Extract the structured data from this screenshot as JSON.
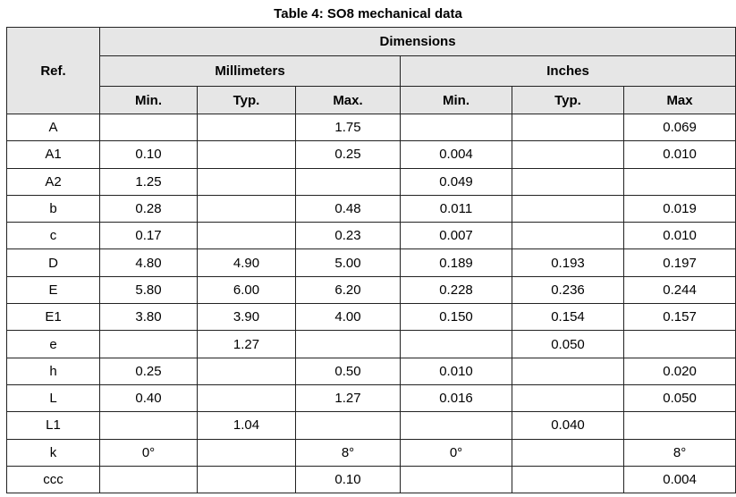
{
  "title": "Table 4: SO8 mechanical data",
  "header": {
    "ref": "Ref.",
    "dimensions": "Dimensions",
    "groups": [
      "Millimeters",
      "Inches"
    ],
    "columns": [
      "Min.",
      "Typ.",
      "Max.",
      "Min.",
      "Typ.",
      "Max"
    ]
  },
  "rows": [
    [
      "A",
      null,
      null,
      "1.75",
      null,
      null,
      "0.069"
    ],
    [
      "A1",
      "0.10",
      null,
      "0.25",
      "0.004",
      null,
      "0.010"
    ],
    [
      "A2",
      "1.25",
      null,
      null,
      "0.049",
      null,
      null
    ],
    [
      "b",
      "0.28",
      null,
      "0.48",
      "0.011",
      null,
      "0.019"
    ],
    [
      "c",
      "0.17",
      null,
      "0.23",
      "0.007",
      null,
      "0.010"
    ],
    [
      "D",
      "4.80",
      "4.90",
      "5.00",
      "0.189",
      "0.193",
      "0.197"
    ],
    [
      "E",
      "5.80",
      "6.00",
      "6.20",
      "0.228",
      "0.236",
      "0.244"
    ],
    [
      "E1",
      "3.80",
      "3.90",
      "4.00",
      "0.150",
      "0.154",
      "0.157"
    ],
    [
      "e",
      null,
      "1.27",
      null,
      null,
      "0.050",
      null
    ],
    [
      "h",
      "0.25",
      null,
      "0.50",
      "0.010",
      null,
      "0.020"
    ],
    [
      "L",
      "0.40",
      null,
      "1.27",
      "0.016",
      null,
      "0.050"
    ],
    [
      "L1",
      null,
      "1.04",
      null,
      null,
      "0.040",
      null
    ],
    [
      "k",
      "0°",
      null,
      "8°",
      "0°",
      null,
      "8°"
    ],
    [
      "ccc",
      null,
      null,
      "0.10",
      null,
      null,
      "0.004"
    ]
  ]
}
